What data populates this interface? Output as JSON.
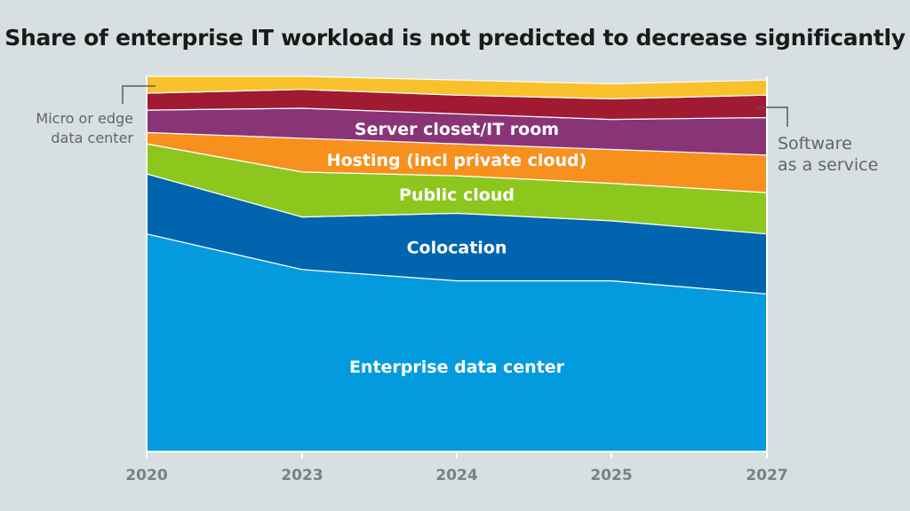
{
  "chart_data": {
    "type": "area",
    "stacked": true,
    "title": "Share of enterprise IT workload is not predicted to decrease significantly",
    "x": [
      "2020",
      "2023",
      "2024",
      "2025",
      "2027"
    ],
    "ylim": [
      0,
      100
    ],
    "grid": false,
    "series": [
      {
        "name": "Enterprise data center",
        "color": "#039bdd",
        "values": [
          58,
          48.5,
          45.5,
          45.5,
          42
        ]
      },
      {
        "name": "Colocation",
        "color": "#0065ae",
        "values": [
          16,
          14,
          18,
          16,
          16
        ]
      },
      {
        "name": "Public cloud",
        "color": "#8dc71e",
        "values": [
          8,
          12,
          10,
          10,
          11
        ]
      },
      {
        "name": "Hosting (incl private cloud)",
        "color": "#f8901e",
        "values": [
          3,
          9,
          8.5,
          9,
          10
        ]
      },
      {
        "name": "Server closet/IT room",
        "color": "#8a3478",
        "values": [
          6,
          8,
          8,
          8,
          10
        ]
      },
      {
        "name": "Software as a service",
        "color": "#a01a32",
        "values": [
          4.5,
          5,
          5,
          5.5,
          6
        ]
      },
      {
        "name": "Micro or edge data center",
        "color": "#f9c12b",
        "values": [
          4.5,
          3.5,
          4,
          4,
          4
        ]
      }
    ],
    "inline_labels": [
      "Server closet/IT room",
      "Hosting (incl private cloud)",
      "Public cloud",
      "Colocation",
      "Enterprise data center"
    ],
    "callouts": {
      "left": [
        "Micro or edge",
        "data center"
      ],
      "right": [
        "Software",
        "as a service"
      ]
    }
  }
}
